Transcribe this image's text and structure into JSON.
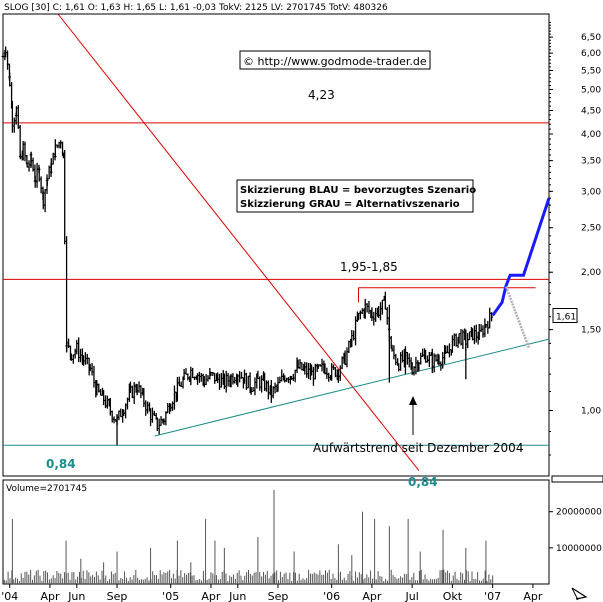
{
  "chart_data": {
    "type": "candlestick",
    "header": "SLOG [30] C: 1,61 O: 1,63 H: 1,65 L: 1,61 -0,03 TokV: 2125 LV: 2701745 TotV: 480326",
    "watermark": "© http://www.godmode-trader.de",
    "scale": "log",
    "ylim": [
      0.72,
      7.3
    ],
    "y_ticks": [
      "6,50",
      "6,00",
      "5,50",
      "5,00",
      "4,50",
      "4,00",
      "3,50",
      "3,00",
      "2,50",
      "2,00",
      "1,50",
      "1,00"
    ],
    "y_tick_values": [
      6.5,
      6.0,
      5.5,
      5.0,
      4.5,
      4.0,
      3.5,
      3.0,
      2.5,
      2.0,
      1.5,
      1.0
    ],
    "x_ticks": [
      "'04",
      "Apr",
      "Jun",
      "Sep",
      "'05",
      "Apr",
      "Jun",
      "Sep",
      "'06",
      "Apr",
      "Jul",
      "Okt",
      "'07",
      "Apr"
    ],
    "x_tick_months": [
      0,
      3,
      5,
      8,
      12,
      15,
      17,
      20,
      24,
      27,
      30,
      33,
      36,
      39
    ],
    "month_range": [
      -0.5,
      40.2
    ],
    "last_price_label": "1,61",
    "last_price": 1.61,
    "price_series": [
      {
        "m": -0.5,
        "p": 5.9
      },
      {
        "m": -0.3,
        "p": 6.2
      },
      {
        "m": 0.0,
        "p": 5.2
      },
      {
        "m": 0.2,
        "p": 4.3
      },
      {
        "m": 0.5,
        "p": 4.5
      },
      {
        "m": 0.8,
        "p": 3.5
      },
      {
        "m": 1.0,
        "p": 3.7
      },
      {
        "m": 1.3,
        "p": 3.4
      },
      {
        "m": 1.6,
        "p": 3.5
      },
      {
        "m": 1.9,
        "p": 3.2
      },
      {
        "m": 2.2,
        "p": 3.3
      },
      {
        "m": 2.5,
        "p": 2.9
      },
      {
        "m": 2.8,
        "p": 3.2
      },
      {
        "m": 3.1,
        "p": 3.4
      },
      {
        "m": 3.4,
        "p": 3.7
      },
      {
        "m": 3.8,
        "p": 3.9
      },
      {
        "m": 4.0,
        "p": 3.6
      },
      {
        "m": 4.1,
        "p": 2.4
      },
      {
        "m": 4.25,
        "p": 1.38
      },
      {
        "m": 4.6,
        "p": 1.33
      },
      {
        "m": 5.0,
        "p": 1.36
      },
      {
        "m": 5.5,
        "p": 1.29
      },
      {
        "m": 6.0,
        "p": 1.23
      },
      {
        "m": 6.5,
        "p": 1.1
      },
      {
        "m": 7.0,
        "p": 1.06
      },
      {
        "m": 7.5,
        "p": 1.0
      },
      {
        "m": 8.0,
        "p": 0.95
      },
      {
        "m": 8.5,
        "p": 1.02
      },
      {
        "m": 9.0,
        "p": 1.09
      },
      {
        "m": 9.5,
        "p": 1.13
      },
      {
        "m": 10.0,
        "p": 1.05
      },
      {
        "m": 10.5,
        "p": 0.98
      },
      {
        "m": 11.0,
        "p": 0.93
      },
      {
        "m": 11.5,
        "p": 0.96
      },
      {
        "m": 12.0,
        "p": 1.05
      },
      {
        "m": 12.5,
        "p": 1.11
      },
      {
        "m": 13.0,
        "p": 1.17
      },
      {
        "m": 13.5,
        "p": 1.22
      },
      {
        "m": 14.0,
        "p": 1.2
      },
      {
        "m": 14.5,
        "p": 1.16
      },
      {
        "m": 15.0,
        "p": 1.19
      },
      {
        "m": 15.5,
        "p": 1.17
      },
      {
        "m": 16.0,
        "p": 1.15
      },
      {
        "m": 16.5,
        "p": 1.18
      },
      {
        "m": 17.0,
        "p": 1.21
      },
      {
        "m": 17.5,
        "p": 1.17
      },
      {
        "m": 18.0,
        "p": 1.13
      },
      {
        "m": 18.5,
        "p": 1.16
      },
      {
        "m": 19.0,
        "p": 1.14
      },
      {
        "m": 19.5,
        "p": 1.09
      },
      {
        "m": 20.0,
        "p": 1.13
      },
      {
        "m": 20.5,
        "p": 1.19
      },
      {
        "m": 21.0,
        "p": 1.2
      },
      {
        "m": 21.5,
        "p": 1.24
      },
      {
        "m": 22.0,
        "p": 1.22
      },
      {
        "m": 22.5,
        "p": 1.2
      },
      {
        "m": 23.0,
        "p": 1.22
      },
      {
        "m": 23.5,
        "p": 1.24
      },
      {
        "m": 24.0,
        "p": 1.21
      },
      {
        "m": 24.5,
        "p": 1.23
      },
      {
        "m": 25.0,
        "p": 1.3
      },
      {
        "m": 25.5,
        "p": 1.43
      },
      {
        "m": 26.0,
        "p": 1.6
      },
      {
        "m": 26.5,
        "p": 1.68
      },
      {
        "m": 27.0,
        "p": 1.62
      },
      {
        "m": 27.5,
        "p": 1.65
      },
      {
        "m": 28.0,
        "p": 1.72
      },
      {
        "m": 28.3,
        "p": 1.46
      },
      {
        "m": 28.5,
        "p": 1.33
      },
      {
        "m": 29.0,
        "p": 1.27
      },
      {
        "m": 29.5,
        "p": 1.3
      },
      {
        "m": 30.0,
        "p": 1.24
      },
      {
        "m": 30.5,
        "p": 1.29
      },
      {
        "m": 31.0,
        "p": 1.32
      },
      {
        "m": 31.5,
        "p": 1.28
      },
      {
        "m": 32.0,
        "p": 1.3
      },
      {
        "m": 32.5,
        "p": 1.31
      },
      {
        "m": 33.0,
        "p": 1.4
      },
      {
        "m": 33.5,
        "p": 1.45
      },
      {
        "m": 34.0,
        "p": 1.42
      },
      {
        "m": 34.5,
        "p": 1.47
      },
      {
        "m": 35.0,
        "p": 1.45
      },
      {
        "m": 35.5,
        "p": 1.55
      },
      {
        "m": 36.0,
        "p": 1.61
      }
    ],
    "volume_label": "Volume=2701745",
    "volume_ticks": [
      "20000000",
      "10000000"
    ],
    "volume_tick_values": [
      20000000,
      10000000
    ],
    "volume_max": 26000000,
    "volume_spikes": [
      {
        "m": 0.2,
        "v": 18000000
      },
      {
        "m": 4.2,
        "v": 12000000
      },
      {
        "m": 5.3,
        "v": 7000000
      },
      {
        "m": 7.0,
        "v": 6000000
      },
      {
        "m": 8.0,
        "v": 9000000
      },
      {
        "m": 10.5,
        "v": 10000000
      },
      {
        "m": 12.5,
        "v": 12000000
      },
      {
        "m": 13.5,
        "v": 6000000
      },
      {
        "m": 14.6,
        "v": 18000000
      },
      {
        "m": 15.3,
        "v": 12000000
      },
      {
        "m": 16.0,
        "v": 10000000
      },
      {
        "m": 18.5,
        "v": 13000000
      },
      {
        "m": 19.7,
        "v": 26000000
      },
      {
        "m": 21.2,
        "v": 9000000
      },
      {
        "m": 24.5,
        "v": 11000000
      },
      {
        "m": 25.5,
        "v": 8000000
      },
      {
        "m": 26.3,
        "v": 20000000
      },
      {
        "m": 27.2,
        "v": 18000000
      },
      {
        "m": 28.3,
        "v": 16000000
      },
      {
        "m": 29.7,
        "v": 18000000
      },
      {
        "m": 30.6,
        "v": 9000000
      },
      {
        "m": 32.3,
        "v": 15000000
      },
      {
        "m": 34.0,
        "v": 10000000
      },
      {
        "m": 35.5,
        "v": 12000000
      }
    ],
    "horizontal_levels": [
      {
        "name": "res-423",
        "label": "4,23",
        "value": 4.23,
        "color": "#dd0000",
        "m_start": -0.5,
        "m_end": 40.2
      },
      {
        "name": "res-195",
        "label": "1,95-1,85",
        "value": 1.93,
        "color": "#dd0000",
        "m_start": -0.5,
        "m_end": 40.2
      },
      {
        "name": "res-185",
        "label": "",
        "value": 1.85,
        "color": "#dd0000",
        "m_start": 26.0,
        "m_end": 39.2,
        "tick_down_to": 1.72
      },
      {
        "name": "sup-084",
        "label": "0,84",
        "value": 0.84,
        "color": "#1c8c8c",
        "m_start": -0.5,
        "m_end": 40.2
      }
    ],
    "lines": [
      {
        "name": "downtrend-line",
        "color": "#dd0000",
        "from": {
          "m": 3.6,
          "p": 7.3
        },
        "to": {
          "m": 30.5,
          "p": 0.74
        }
      },
      {
        "name": "uptrend-line",
        "color": "#1c8c8c",
        "from": {
          "m": 10.8,
          "p": 0.88
        },
        "to": {
          "m": 40.2,
          "p": 1.43
        }
      }
    ],
    "scenario_blue": [
      {
        "m": 36.0,
        "p": 1.61
      },
      {
        "m": 36.7,
        "p": 1.72
      },
      {
        "m": 37.0,
        "p": 1.87
      },
      {
        "m": 37.3,
        "p": 1.97
      },
      {
        "m": 38.3,
        "p": 1.97
      },
      {
        "m": 40.2,
        "p": 2.9
      }
    ],
    "scenario_grey": [
      {
        "m": 37.0,
        "p": 1.86
      },
      {
        "m": 38.7,
        "p": 1.37
      }
    ],
    "annotations": {
      "legend_blue": "Skizzierung BLAU = bevorzugtes Szenario",
      "legend_grey": "Skizzierung GRAU = Alternativszenario",
      "uptrend_label": "Aufwärtstrend seit Dezember 2004",
      "bottom_label": "0,84"
    }
  }
}
